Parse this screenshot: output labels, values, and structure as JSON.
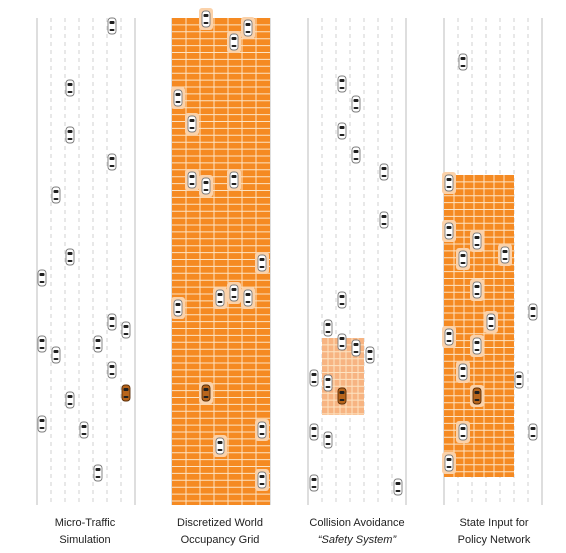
{
  "colors": {
    "road_edge": "#c8c8c8",
    "lane_divider": "#d2d2d2",
    "grid_fill": "#f58a22",
    "grid_line": "#fde3c2",
    "safety_fill": "#f7b482",
    "car_body": "#ffffff",
    "car_outline": "#7a7a7a",
    "car_window": "#1f1f1f",
    "ego_body": "#b8651b",
    "ego_outline": "#5a2e08",
    "car_halo": "#fbd2aa"
  },
  "panels": [
    {
      "name": "micro-traffic-simulation",
      "caption": [
        "Micro-Traffic",
        "Simulation"
      ]
    },
    {
      "name": "discretized-world-occupancy-grid",
      "caption": [
        "Discretized World",
        "Occupancy Grid"
      ]
    },
    {
      "name": "collision-avoidance-safety-system",
      "caption": [
        "Collision Avoidance",
        "“Safety System”"
      ]
    },
    {
      "name": "state-input-for-policy-network",
      "caption": [
        "State Input for",
        "Policy Network"
      ]
    }
  ]
}
